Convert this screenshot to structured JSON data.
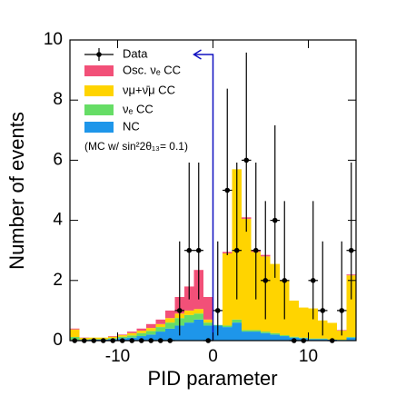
{
  "chart_data": {
    "type": "histogram",
    "xlabel": "PID parameter",
    "ylabel": "Number of events",
    "xlim": [
      -15,
      15
    ],
    "ylim": [
      0,
      10
    ],
    "xticks": [
      -10,
      0,
      10
    ],
    "yticks": [
      0,
      2,
      4,
      6,
      8,
      10
    ],
    "bins": [
      -15,
      -14,
      -13,
      -12,
      -11,
      -10,
      -9,
      -8,
      -7,
      -6,
      -5,
      -4,
      -3,
      -2,
      -1,
      0,
      1,
      2,
      3,
      4,
      5,
      6,
      7,
      8,
      9,
      10,
      11,
      12,
      13,
      14,
      15
    ],
    "series": [
      {
        "name": "Osc. νₑ CC",
        "color": "#f25078",
        "values": [
          0.03,
          0.01,
          0,
          0,
          0.02,
          0.02,
          0.05,
          0.07,
          0.13,
          0.15,
          0.25,
          0.55,
          0.8,
          1.3,
          0.75,
          0,
          0.05,
          0,
          0.05,
          0.05,
          0.05,
          0,
          0.02,
          0,
          0,
          0,
          0,
          0,
          0.02,
          0.03
        ]
      },
      {
        "name": "νμ+ν̄μ CC",
        "color": "#ffd400",
        "values": [
          0.25,
          0.05,
          0.05,
          0.05,
          0.05,
          0.05,
          0.08,
          0.08,
          0.1,
          0.1,
          0.15,
          0.15,
          0.15,
          0.15,
          0.1,
          0,
          2.4,
          5.0,
          3.7,
          2.6,
          2.5,
          2.3,
          1.8,
          1.2,
          1.0,
          1.0,
          0.6,
          0.55,
          0.3,
          2.05
        ]
      },
      {
        "name": "νₑ CC",
        "color": "#66dd66",
        "values": [
          0.1,
          0.02,
          0.02,
          0.02,
          0.03,
          0.05,
          0.07,
          0.1,
          0.12,
          0.15,
          0.2,
          0.25,
          0.25,
          0.2,
          0.1,
          0.02,
          0.05,
          0.1,
          0.05,
          0.05,
          0.05,
          0.05,
          0.03,
          0.03,
          0.02,
          0.02,
          0.02,
          0.01,
          0.01,
          0.02
        ]
      },
      {
        "name": "NC",
        "color": "#1e96ea",
        "values": [
          0.02,
          0.02,
          0.03,
          0.03,
          0.05,
          0.08,
          0.1,
          0.15,
          0.2,
          0.3,
          0.4,
          0.5,
          0.6,
          0.7,
          0.5,
          0.5,
          0.45,
          0.6,
          0.3,
          0.3,
          0.25,
          0.2,
          0.15,
          0.1,
          0.08,
          0.05,
          0.05,
          0.03,
          0.02,
          0.1
        ]
      }
    ],
    "data": {
      "name": "Data",
      "color": "#000000",
      "values": [
        0,
        0,
        0,
        0,
        0,
        0,
        0,
        0,
        0,
        0,
        0,
        1,
        3,
        3,
        0,
        1,
        5,
        3,
        6,
        3,
        2,
        4,
        2,
        0,
        0,
        2,
        1,
        0,
        1,
        3
      ],
      "errors_low": [
        0,
        0,
        0,
        0,
        0,
        0,
        0,
        0,
        0,
        0,
        0,
        0.83,
        1.63,
        1.63,
        0,
        0.83,
        2.16,
        1.63,
        2.38,
        1.63,
        1.29,
        1.91,
        1.29,
        0,
        0,
        1.29,
        0.83,
        0,
        0.83,
        1.63
      ],
      "errors_high": [
        0,
        0,
        0,
        0,
        0,
        0,
        0,
        0,
        0,
        0,
        0,
        2.3,
        2.92,
        2.92,
        0,
        2.3,
        3.38,
        2.92,
        3.58,
        2.92,
        2.64,
        3.16,
        2.64,
        0,
        0,
        2.64,
        2.3,
        0,
        2.3,
        2.92
      ]
    },
    "annotation": "(MC w/ sin²2θ₁₃= 0.1)"
  }
}
